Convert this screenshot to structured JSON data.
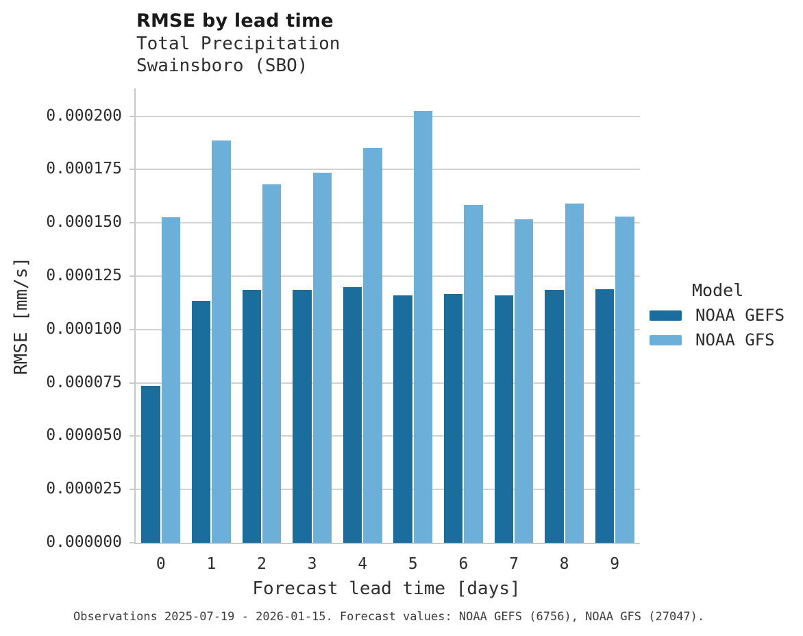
{
  "title": "RMSE by lead time",
  "subtitle_lines": [
    "Total Precipitation",
    "Swainsboro (SBO)"
  ],
  "caption": "Observations 2025-07-19 - 2026-01-15. Forecast values: NOAA GEFS (6756), NOAA GFS (27047).",
  "colors": {
    "gefs": "#1a6d9c",
    "gfs": "#6cb0d9",
    "grid": "#d2d2d2",
    "spine": "#c9c9c9",
    "text": "#262626"
  },
  "legend": {
    "title": "Model",
    "entries": [
      {
        "label": "NOAA GEFS",
        "color_key": "gefs"
      },
      {
        "label": "NOAA GFS",
        "color_key": "gfs"
      }
    ]
  },
  "chart_data": {
    "type": "bar",
    "title": "RMSE by lead time",
    "subtitle": "Total Precipitation / Swainsboro (SBO)",
    "xlabel": "Forecast lead time [days]",
    "ylabel": "RMSE [mm/s]",
    "categories": [
      "0",
      "1",
      "2",
      "3",
      "4",
      "5",
      "6",
      "7",
      "8",
      "9"
    ],
    "series": [
      {
        "name": "NOAA GEFS",
        "color": "#1a6d9c",
        "values": [
          7.35e-05,
          0.0001135,
          0.0001185,
          0.0001185,
          0.00012,
          0.000116,
          0.0001165,
          0.000116,
          0.0001185,
          0.000119
        ]
      },
      {
        "name": "NOAA GFS",
        "color": "#6cb0d9",
        "values": [
          0.0001525,
          0.0001885,
          0.000168,
          0.0001735,
          0.000185,
          0.0002025,
          0.0001585,
          0.0001515,
          0.000159,
          0.000153
        ]
      }
    ],
    "ylim": [
      0,
      0.000213
    ],
    "yticks": [
      0,
      2.5e-05,
      5e-05,
      7.5e-05,
      0.0001,
      0.000125,
      0.00015,
      0.000175,
      0.0002
    ],
    "ytick_labels": [
      "0.000000",
      "0.000025",
      "0.000050",
      "0.000075",
      "0.000100",
      "0.000125",
      "0.000150",
      "0.000175",
      "0.000200"
    ],
    "grid": "horizontal",
    "legend_position": "center-right"
  }
}
